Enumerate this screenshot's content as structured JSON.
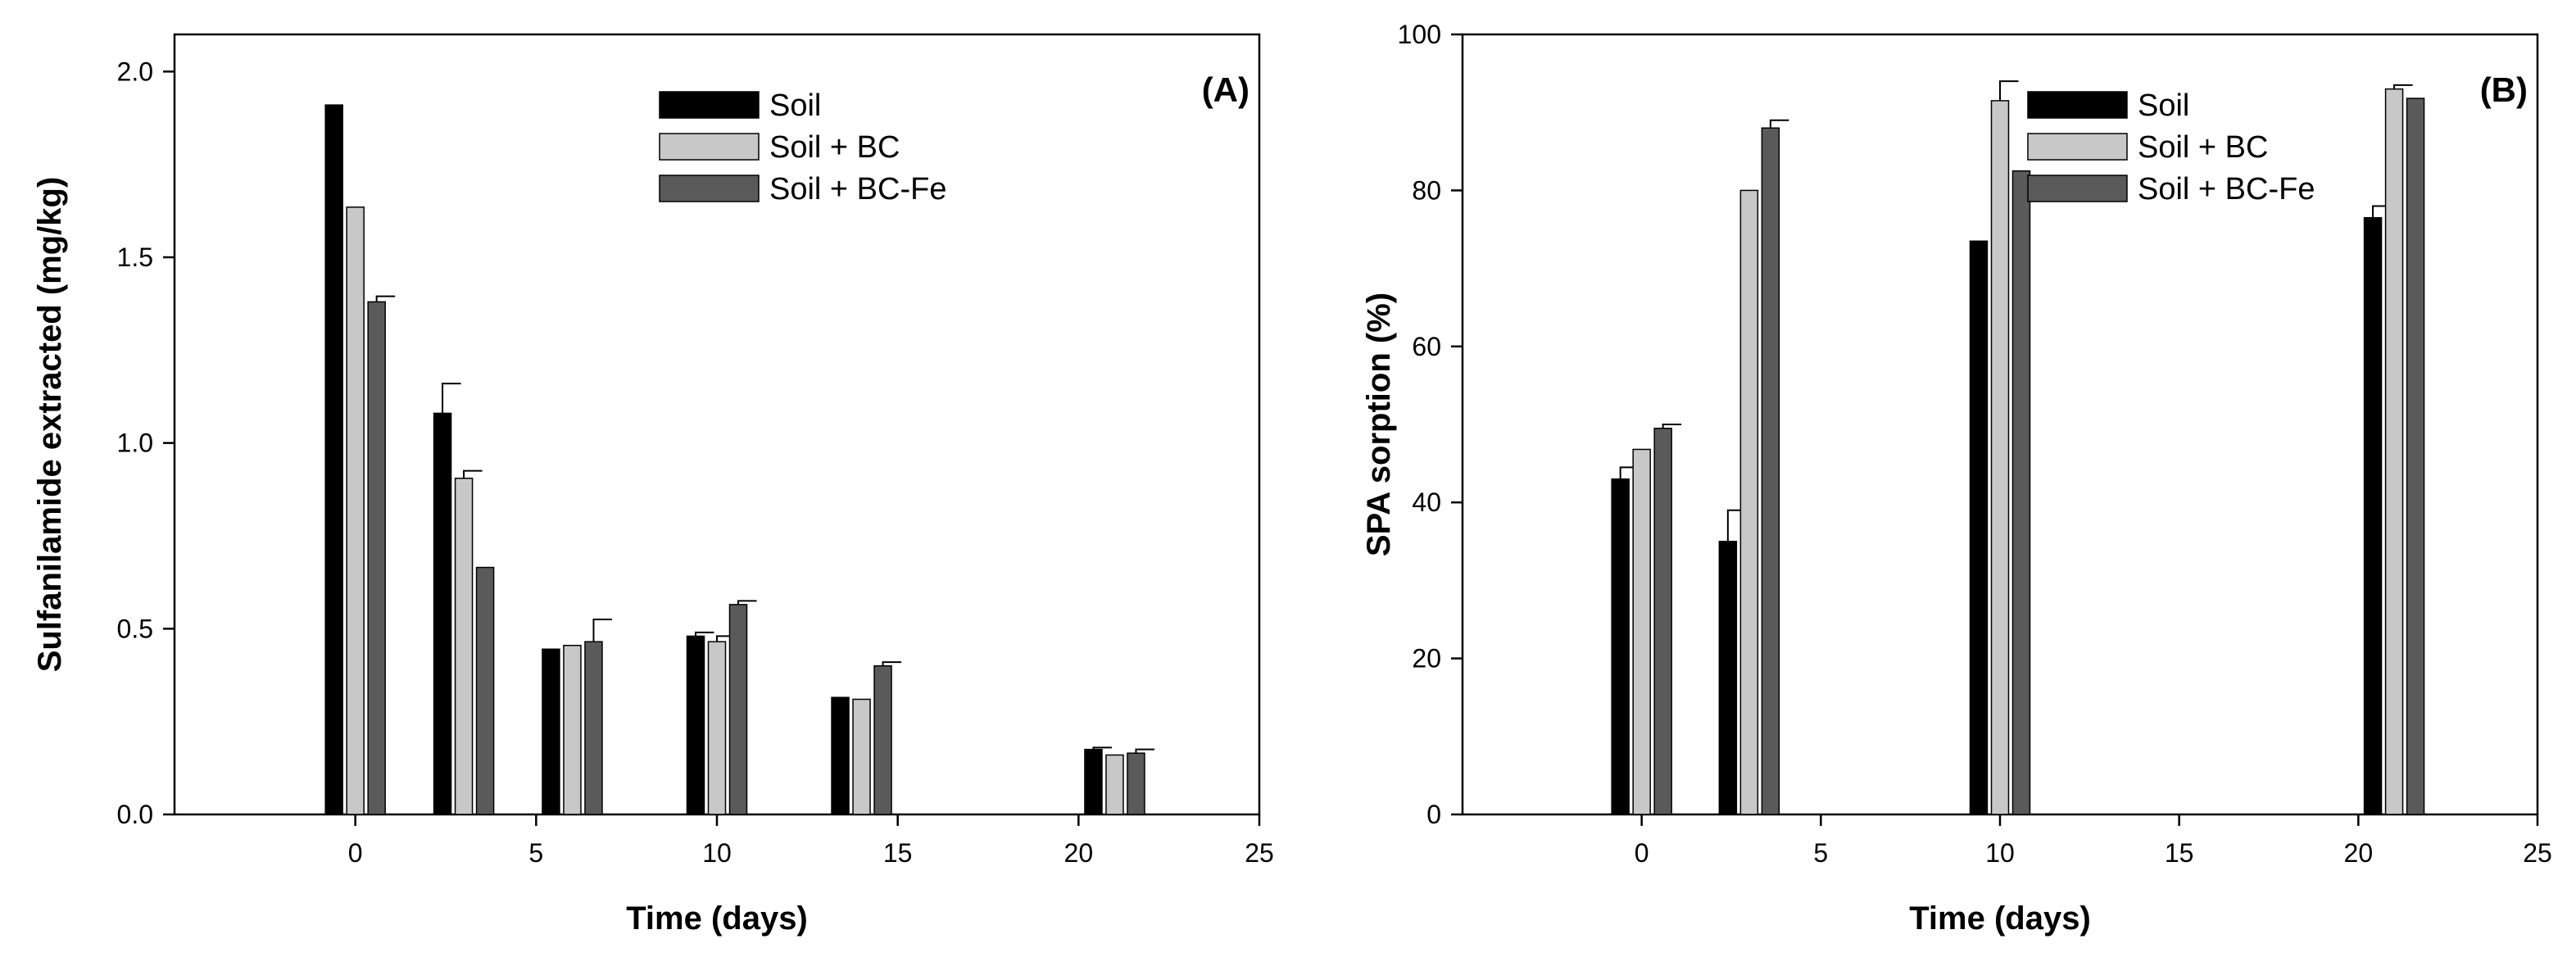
{
  "chart_data": [
    {
      "type": "bar",
      "panel_label": "(A)",
      "title": "",
      "xlabel": "Time (days)",
      "ylabel": "Sulfanilamide extracted (mg/kg)",
      "xlim": [
        -5,
        25
      ],
      "ylim": [
        0,
        2.1
      ],
      "xticks": [
        0,
        5,
        10,
        15,
        20,
        25
      ],
      "xtick_labels": [
        "0",
        "5",
        "10",
        "15",
        "20",
        "25"
      ],
      "yticks": [
        0,
        0.5,
        1.0,
        1.5,
        2.0
      ],
      "ytick_labels": [
        "0.0",
        "0.5",
        "1.0",
        "1.5",
        "2.0"
      ],
      "grid": false,
      "legend_position": "top-right",
      "x": [
        0,
        3,
        6,
        10,
        14,
        21
      ],
      "series": [
        {
          "name": "Soil",
          "color": "#000000",
          "values": [
            1.91,
            1.08,
            0.445,
            0.48,
            0.315,
            0.175
          ],
          "errors": [
            0,
            0.08,
            0,
            0.01,
            0,
            0.005
          ]
        },
        {
          "name": "Soil + BC",
          "color": "#c8c8c8",
          "values": [
            1.635,
            0.905,
            0.455,
            0.465,
            0.31,
            0.16
          ],
          "errors": [
            0,
            0.02,
            0,
            0.015,
            0,
            0
          ]
        },
        {
          "name": "Soil + BC-Fe",
          "color": "#5a5a5a",
          "values": [
            1.38,
            0.665,
            0.465,
            0.565,
            0.4,
            0.165
          ],
          "errors": [
            0.015,
            0,
            0.06,
            0.01,
            0.01,
            0.01
          ]
        }
      ]
    },
    {
      "type": "bar",
      "panel_label": "(B)",
      "title": "",
      "xlabel": "Time (days)",
      "ylabel": "SPA sorption (%)",
      "xlim": [
        -5,
        25
      ],
      "ylim": [
        0,
        100
      ],
      "xticks": [
        0,
        5,
        10,
        15,
        20,
        25
      ],
      "xtick_labels": [
        "0",
        "5",
        "10",
        "15",
        "20",
        "25"
      ],
      "yticks": [
        0,
        20,
        40,
        60,
        80,
        100
      ],
      "ytick_labels": [
        "0",
        "20",
        "40",
        "60",
        "80",
        "100"
      ],
      "grid": false,
      "legend_position": "top-right",
      "x": [
        0,
        3,
        10,
        21
      ],
      "series": [
        {
          "name": "Soil",
          "color": "#000000",
          "values": [
            43,
            35,
            73.5,
            76.5
          ],
          "errors": [
            1.5,
            4,
            0,
            1.5
          ]
        },
        {
          "name": "Soil + BC",
          "color": "#c8c8c8",
          "values": [
            46.8,
            80,
            91.5,
            93
          ],
          "errors": [
            0,
            0,
            2.5,
            0.5
          ]
        },
        {
          "name": "Soil + BC-Fe",
          "color": "#5a5a5a",
          "values": [
            49.5,
            88,
            82.5,
            91.8
          ],
          "errors": [
            0.5,
            1,
            0,
            0
          ]
        }
      ]
    }
  ]
}
